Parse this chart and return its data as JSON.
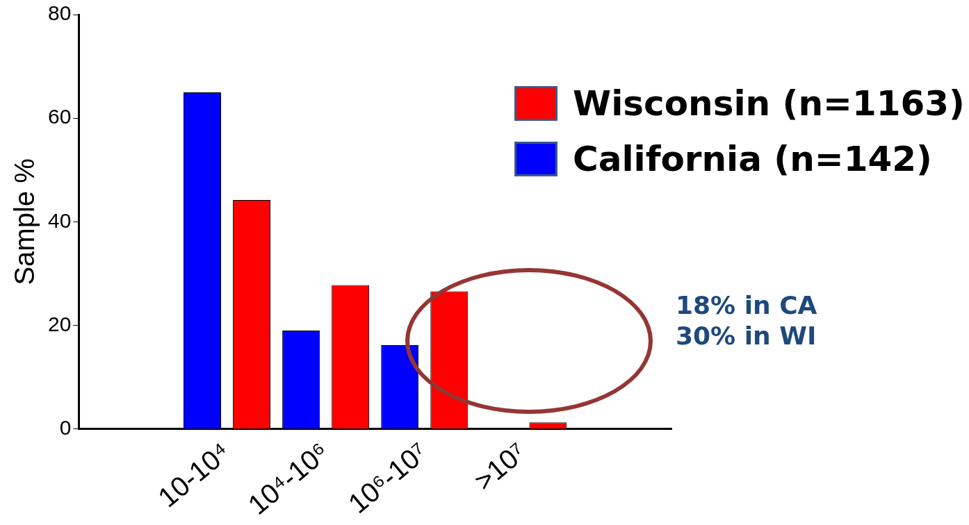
{
  "chart_data": {
    "type": "bar",
    "ylabel": "Sample %",
    "categories": [
      null,
      "10-10⁴",
      "10⁴-10⁶",
      "10⁶-10⁷",
      ">10⁷",
      null
    ],
    "series": [
      {
        "name": "California (n=142)",
        "color": "#0000ff",
        "values": [
          null,
          65,
          19,
          16.2,
          0,
          null
        ]
      },
      {
        "name": "Wisconsin (n=1163)",
        "color": "#ff0000",
        "values": [
          null,
          44.2,
          27.8,
          26.6,
          1.3,
          null
        ]
      }
    ],
    "ylim": [
      0,
      80
    ],
    "yticks": [
      0,
      20,
      40,
      60,
      80
    ],
    "grid": false,
    "legend": "right",
    "annotations": [
      "18% in CA",
      "30% in WI"
    ]
  }
}
